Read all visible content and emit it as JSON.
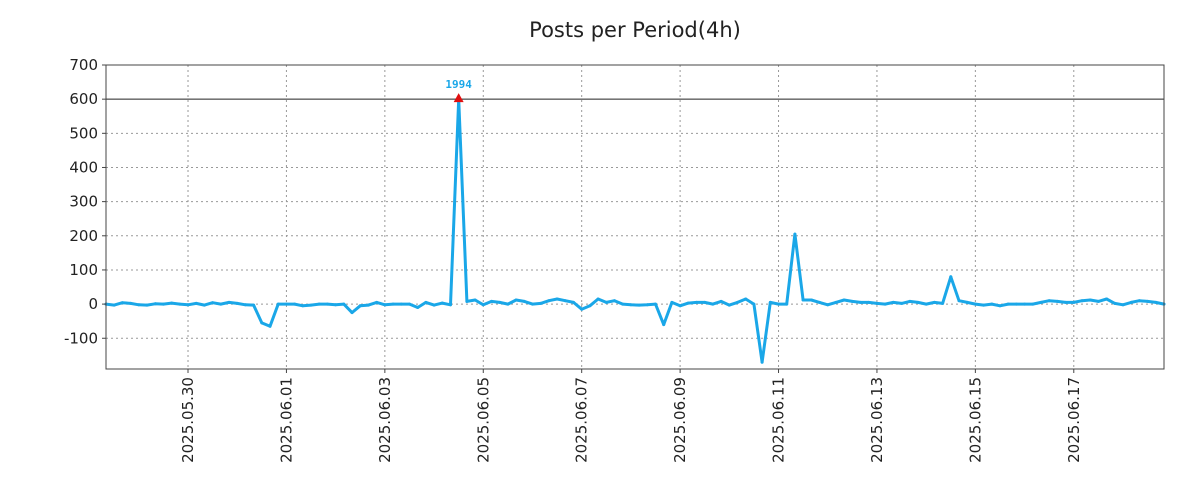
{
  "colors": {
    "series": "#1aa7e8",
    "peak_marker": "#e01010",
    "peak_label": "#1aa7e8"
  },
  "chart_data": {
    "type": "line",
    "title": "Posts per Period(4h)",
    "xlabel": "",
    "ylabel": "",
    "ylim": [
      -190,
      700
    ],
    "yticks": [
      700,
      600,
      500,
      400,
      300,
      200,
      100,
      0,
      -100
    ],
    "x_axis": {
      "type": "date",
      "start": "2025-05-28T08:00",
      "end": "2025-06-18T20:00",
      "interval_hours": 4
    },
    "xtick_labels": [
      "2025.05.30",
      "2025.06.01",
      "2025.06.03",
      "2025.06.05",
      "2025.06.07",
      "2025.06.09",
      "2025.06.11",
      "2025.06.13",
      "2025.06.15",
      "2025.06.17"
    ],
    "grid": true,
    "reference_line": 600,
    "peak": {
      "x": "2025-06-04T12:00",
      "y": 600,
      "label": "1994"
    },
    "series": [
      {
        "name": "",
        "points": [
          [
            "2025-05-28T08:00",
            0
          ],
          [
            "2025-05-28T12:00",
            -3
          ],
          [
            "2025-05-28T16:00",
            4
          ],
          [
            "2025-05-28T20:00",
            2
          ],
          [
            "2025-05-29T00:00",
            -2
          ],
          [
            "2025-05-29T04:00",
            -3
          ],
          [
            "2025-05-29T08:00",
            1
          ],
          [
            "2025-05-29T12:00",
            0
          ],
          [
            "2025-05-29T16:00",
            3
          ],
          [
            "2025-05-29T20:00",
            0
          ],
          [
            "2025-05-30T00:00",
            -2
          ],
          [
            "2025-05-30T04:00",
            2
          ],
          [
            "2025-05-30T08:00",
            -3
          ],
          [
            "2025-05-30T12:00",
            4
          ],
          [
            "2025-05-30T16:00",
            0
          ],
          [
            "2025-05-30T20:00",
            5
          ],
          [
            "2025-05-31T00:00",
            2
          ],
          [
            "2025-05-31T04:00",
            -2
          ],
          [
            "2025-05-31T08:00",
            -3
          ],
          [
            "2025-05-31T12:00",
            -55
          ],
          [
            "2025-05-31T16:00",
            -65
          ],
          [
            "2025-05-31T20:00",
            0
          ],
          [
            "2025-06-01T00:00",
            0
          ],
          [
            "2025-06-01T04:00",
            0
          ],
          [
            "2025-06-01T08:00",
            -5
          ],
          [
            "2025-06-01T12:00",
            -3
          ],
          [
            "2025-06-01T16:00",
            0
          ],
          [
            "2025-06-01T20:00",
            0
          ],
          [
            "2025-06-02T00:00",
            -2
          ],
          [
            "2025-06-02T04:00",
            0
          ],
          [
            "2025-06-02T08:00",
            -25
          ],
          [
            "2025-06-02T12:00",
            -5
          ],
          [
            "2025-06-02T16:00",
            -3
          ],
          [
            "2025-06-02T20:00",
            5
          ],
          [
            "2025-06-03T00:00",
            -2
          ],
          [
            "2025-06-03T04:00",
            0
          ],
          [
            "2025-06-03T08:00",
            0
          ],
          [
            "2025-06-03T12:00",
            0
          ],
          [
            "2025-06-03T16:00",
            -10
          ],
          [
            "2025-06-03T20:00",
            5
          ],
          [
            "2025-06-04T00:00",
            -3
          ],
          [
            "2025-06-04T04:00",
            3
          ],
          [
            "2025-06-04T08:00",
            -2
          ],
          [
            "2025-06-04T12:00",
            600
          ],
          [
            "2025-06-04T16:00",
            8
          ],
          [
            "2025-06-04T20:00",
            12
          ],
          [
            "2025-06-05T00:00",
            -2
          ],
          [
            "2025-06-05T04:00",
            8
          ],
          [
            "2025-06-05T08:00",
            5
          ],
          [
            "2025-06-05T12:00",
            0
          ],
          [
            "2025-06-05T16:00",
            12
          ],
          [
            "2025-06-05T20:00",
            8
          ],
          [
            "2025-06-06T00:00",
            0
          ],
          [
            "2025-06-06T04:00",
            2
          ],
          [
            "2025-06-06T08:00",
            10
          ],
          [
            "2025-06-06T12:00",
            15
          ],
          [
            "2025-06-06T16:00",
            10
          ],
          [
            "2025-06-06T20:00",
            5
          ],
          [
            "2025-06-07T00:00",
            -15
          ],
          [
            "2025-06-07T04:00",
            -5
          ],
          [
            "2025-06-07T08:00",
            15
          ],
          [
            "2025-06-07T12:00",
            5
          ],
          [
            "2025-06-07T16:00",
            10
          ],
          [
            "2025-06-07T20:00",
            0
          ],
          [
            "2025-06-08T00:00",
            -2
          ],
          [
            "2025-06-08T04:00",
            -3
          ],
          [
            "2025-06-08T08:00",
            -2
          ],
          [
            "2025-06-08T12:00",
            0
          ],
          [
            "2025-06-08T16:00",
            -60
          ],
          [
            "2025-06-08T20:00",
            5
          ],
          [
            "2025-06-09T00:00",
            -5
          ],
          [
            "2025-06-09T04:00",
            3
          ],
          [
            "2025-06-09T08:00",
            5
          ],
          [
            "2025-06-09T12:00",
            5
          ],
          [
            "2025-06-09T16:00",
            0
          ],
          [
            "2025-06-09T20:00",
            8
          ],
          [
            "2025-06-10T00:00",
            -3
          ],
          [
            "2025-06-10T04:00",
            5
          ],
          [
            "2025-06-10T08:00",
            15
          ],
          [
            "2025-06-10T12:00",
            0
          ],
          [
            "2025-06-10T16:00",
            -170
          ],
          [
            "2025-06-10T20:00",
            5
          ],
          [
            "2025-06-11T00:00",
            0
          ],
          [
            "2025-06-11T04:00",
            0
          ],
          [
            "2025-06-11T08:00",
            205
          ],
          [
            "2025-06-11T12:00",
            12
          ],
          [
            "2025-06-11T16:00",
            12
          ],
          [
            "2025-06-11T20:00",
            5
          ],
          [
            "2025-06-12T00:00",
            -2
          ],
          [
            "2025-06-12T04:00",
            5
          ],
          [
            "2025-06-12T08:00",
            12
          ],
          [
            "2025-06-12T12:00",
            8
          ],
          [
            "2025-06-12T16:00",
            5
          ],
          [
            "2025-06-12T20:00",
            5
          ],
          [
            "2025-06-13T00:00",
            2
          ],
          [
            "2025-06-13T04:00",
            0
          ],
          [
            "2025-06-13T08:00",
            5
          ],
          [
            "2025-06-13T12:00",
            2
          ],
          [
            "2025-06-13T16:00",
            8
          ],
          [
            "2025-06-13T20:00",
            5
          ],
          [
            "2025-06-14T00:00",
            0
          ],
          [
            "2025-06-14T04:00",
            5
          ],
          [
            "2025-06-14T08:00",
            2
          ],
          [
            "2025-06-14T12:00",
            80
          ],
          [
            "2025-06-14T16:00",
            10
          ],
          [
            "2025-06-14T20:00",
            5
          ],
          [
            "2025-06-15T00:00",
            0
          ],
          [
            "2025-06-15T04:00",
            -3
          ],
          [
            "2025-06-15T08:00",
            0
          ],
          [
            "2025-06-15T12:00",
            -5
          ],
          [
            "2025-06-15T16:00",
            0
          ],
          [
            "2025-06-15T20:00",
            0
          ],
          [
            "2025-06-16T00:00",
            0
          ],
          [
            "2025-06-16T04:00",
            0
          ],
          [
            "2025-06-16T08:00",
            5
          ],
          [
            "2025-06-16T12:00",
            10
          ],
          [
            "2025-06-16T16:00",
            8
          ],
          [
            "2025-06-16T20:00",
            5
          ],
          [
            "2025-06-17T00:00",
            5
          ],
          [
            "2025-06-17T04:00",
            10
          ],
          [
            "2025-06-17T08:00",
            12
          ],
          [
            "2025-06-17T12:00",
            8
          ],
          [
            "2025-06-17T16:00",
            15
          ],
          [
            "2025-06-17T20:00",
            2
          ],
          [
            "2025-06-18T00:00",
            -2
          ],
          [
            "2025-06-18T04:00",
            5
          ],
          [
            "2025-06-18T08:00",
            10
          ],
          [
            "2025-06-18T12:00",
            8
          ],
          [
            "2025-06-18T16:00",
            5
          ],
          [
            "2025-06-18T20:00",
            0
          ]
        ]
      }
    ]
  }
}
